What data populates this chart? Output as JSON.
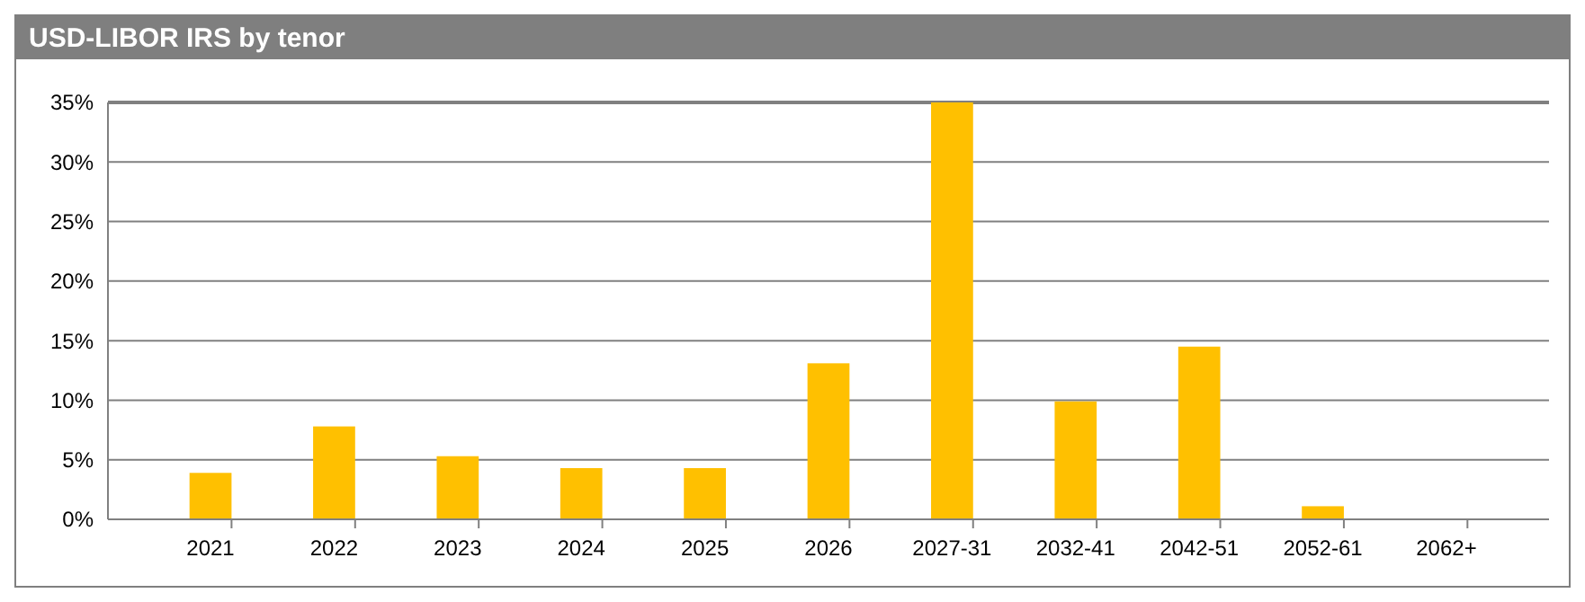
{
  "chart_data": {
    "type": "bar",
    "title": "USD-LIBOR IRS by tenor",
    "categories": [
      "2021",
      "2022",
      "2023",
      "2024",
      "2025",
      "2026",
      "2027-31",
      "2032-41",
      "2042-51",
      "2052-61",
      "2062+"
    ],
    "values": [
      3.9,
      7.8,
      5.3,
      4.3,
      4.3,
      13.1,
      35,
      9.9,
      14.5,
      1.1,
      0
    ],
    "color": "#ffc000",
    "ylim": [
      0,
      35
    ],
    "yticks": [
      {
        "value": 0,
        "label": "0%"
      },
      {
        "value": 5,
        "label": "5%"
      },
      {
        "value": 10,
        "label": "10%"
      },
      {
        "value": 15,
        "label": "15%"
      },
      {
        "value": 20,
        "label": "20%"
      },
      {
        "value": 25,
        "label": "25%"
      },
      {
        "value": 30,
        "label": "30%"
      },
      {
        "value": 35,
        "label": "35%"
      }
    ],
    "grid": "y"
  }
}
